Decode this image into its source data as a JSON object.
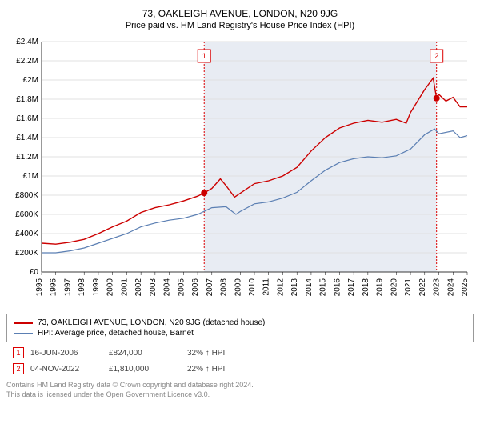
{
  "title": "73, OAKLEIGH AVENUE, LONDON, N20 9JG",
  "subtitle": "Price paid vs. HM Land Registry's House Price Index (HPI)",
  "chart": {
    "type": "line",
    "x_min": 1995,
    "x_max": 2025,
    "y_min": 0,
    "y_max": 2400000,
    "y_tick_step": 200000,
    "y_tick_labels": [
      "£0",
      "£200K",
      "£400K",
      "£600K",
      "£800K",
      "£1M",
      "£1.2M",
      "£1.4M",
      "£1.6M",
      "£1.8M",
      "£2M",
      "£2.2M",
      "£2.4M"
    ],
    "x_ticks": [
      1995,
      1996,
      1997,
      1998,
      1999,
      2000,
      2001,
      2002,
      2003,
      2004,
      2005,
      2006,
      2007,
      2008,
      2009,
      2010,
      2011,
      2012,
      2013,
      2014,
      2015,
      2016,
      2017,
      2018,
      2019,
      2020,
      2021,
      2022,
      2023,
      2024,
      2025
    ],
    "shade_start": 2006.46,
    "shade_end": 2022.84,
    "background_color": "#ffffff",
    "grid_color": "#e0e0e0",
    "series": [
      {
        "name": "73, OAKLEIGH AVENUE, LONDON, N20 9JG (detached house)",
        "color": "#cc0000",
        "width": 1.4,
        "points": [
          [
            1995,
            300000
          ],
          [
            1996,
            290000
          ],
          [
            1997,
            310000
          ],
          [
            1998,
            340000
          ],
          [
            1999,
            400000
          ],
          [
            2000,
            470000
          ],
          [
            2001,
            530000
          ],
          [
            2002,
            620000
          ],
          [
            2003,
            670000
          ],
          [
            2004,
            700000
          ],
          [
            2005,
            740000
          ],
          [
            2006,
            790000
          ],
          [
            2006.46,
            824000
          ],
          [
            2007,
            870000
          ],
          [
            2007.6,
            970000
          ],
          [
            2008,
            900000
          ],
          [
            2008.6,
            780000
          ],
          [
            2009,
            820000
          ],
          [
            2010,
            920000
          ],
          [
            2011,
            950000
          ],
          [
            2012,
            1000000
          ],
          [
            2013,
            1090000
          ],
          [
            2014,
            1260000
          ],
          [
            2015,
            1400000
          ],
          [
            2016,
            1500000
          ],
          [
            2017,
            1550000
          ],
          [
            2018,
            1580000
          ],
          [
            2019,
            1560000
          ],
          [
            2020,
            1590000
          ],
          [
            2020.7,
            1550000
          ],
          [
            2021,
            1660000
          ],
          [
            2022,
            1900000
          ],
          [
            2022.6,
            2020000
          ],
          [
            2022.84,
            1810000
          ],
          [
            2023,
            1850000
          ],
          [
            2023.5,
            1780000
          ],
          [
            2024,
            1820000
          ],
          [
            2024.5,
            1720000
          ],
          [
            2025,
            1720000
          ]
        ]
      },
      {
        "name": "HPI: Average price, detached house, Barnet",
        "color": "#5b7fb3",
        "width": 1.2,
        "points": [
          [
            1995,
            200000
          ],
          [
            1996,
            200000
          ],
          [
            1997,
            220000
          ],
          [
            1998,
            250000
          ],
          [
            1999,
            300000
          ],
          [
            2000,
            350000
          ],
          [
            2001,
            400000
          ],
          [
            2002,
            470000
          ],
          [
            2003,
            510000
          ],
          [
            2004,
            540000
          ],
          [
            2005,
            560000
          ],
          [
            2006,
            600000
          ],
          [
            2007,
            670000
          ],
          [
            2008,
            680000
          ],
          [
            2008.7,
            600000
          ],
          [
            2009,
            630000
          ],
          [
            2010,
            710000
          ],
          [
            2011,
            730000
          ],
          [
            2012,
            770000
          ],
          [
            2013,
            830000
          ],
          [
            2014,
            950000
          ],
          [
            2015,
            1060000
          ],
          [
            2016,
            1140000
          ],
          [
            2017,
            1180000
          ],
          [
            2018,
            1200000
          ],
          [
            2019,
            1190000
          ],
          [
            2020,
            1210000
          ],
          [
            2021,
            1280000
          ],
          [
            2022,
            1430000
          ],
          [
            2022.7,
            1490000
          ],
          [
            2023,
            1440000
          ],
          [
            2024,
            1470000
          ],
          [
            2024.5,
            1400000
          ],
          [
            2025,
            1420000
          ]
        ]
      }
    ],
    "markers": [
      {
        "n": "1",
        "x": 2006.46,
        "y": 824000,
        "box_y": 2250000
      },
      {
        "n": "2",
        "x": 2022.84,
        "y": 1810000,
        "box_y": 2250000
      }
    ],
    "label_fontsize": 10
  },
  "legend": {
    "items": [
      {
        "label": "73, OAKLEIGH AVENUE, LONDON, N20 9JG (detached house)",
        "color": "#cc0000"
      },
      {
        "label": "HPI: Average price, detached house, Barnet",
        "color": "#5b7fb3"
      }
    ]
  },
  "sales": [
    {
      "n": "1",
      "date": "16-JUN-2006",
      "price": "£824,000",
      "delta": "32% ↑ HPI"
    },
    {
      "n": "2",
      "date": "04-NOV-2022",
      "price": "£1,810,000",
      "delta": "22% ↑ HPI"
    }
  ],
  "footer_line1": "Contains HM Land Registry data © Crown copyright and database right 2024.",
  "footer_line2": "This data is licensed under the Open Government Licence v3.0."
}
